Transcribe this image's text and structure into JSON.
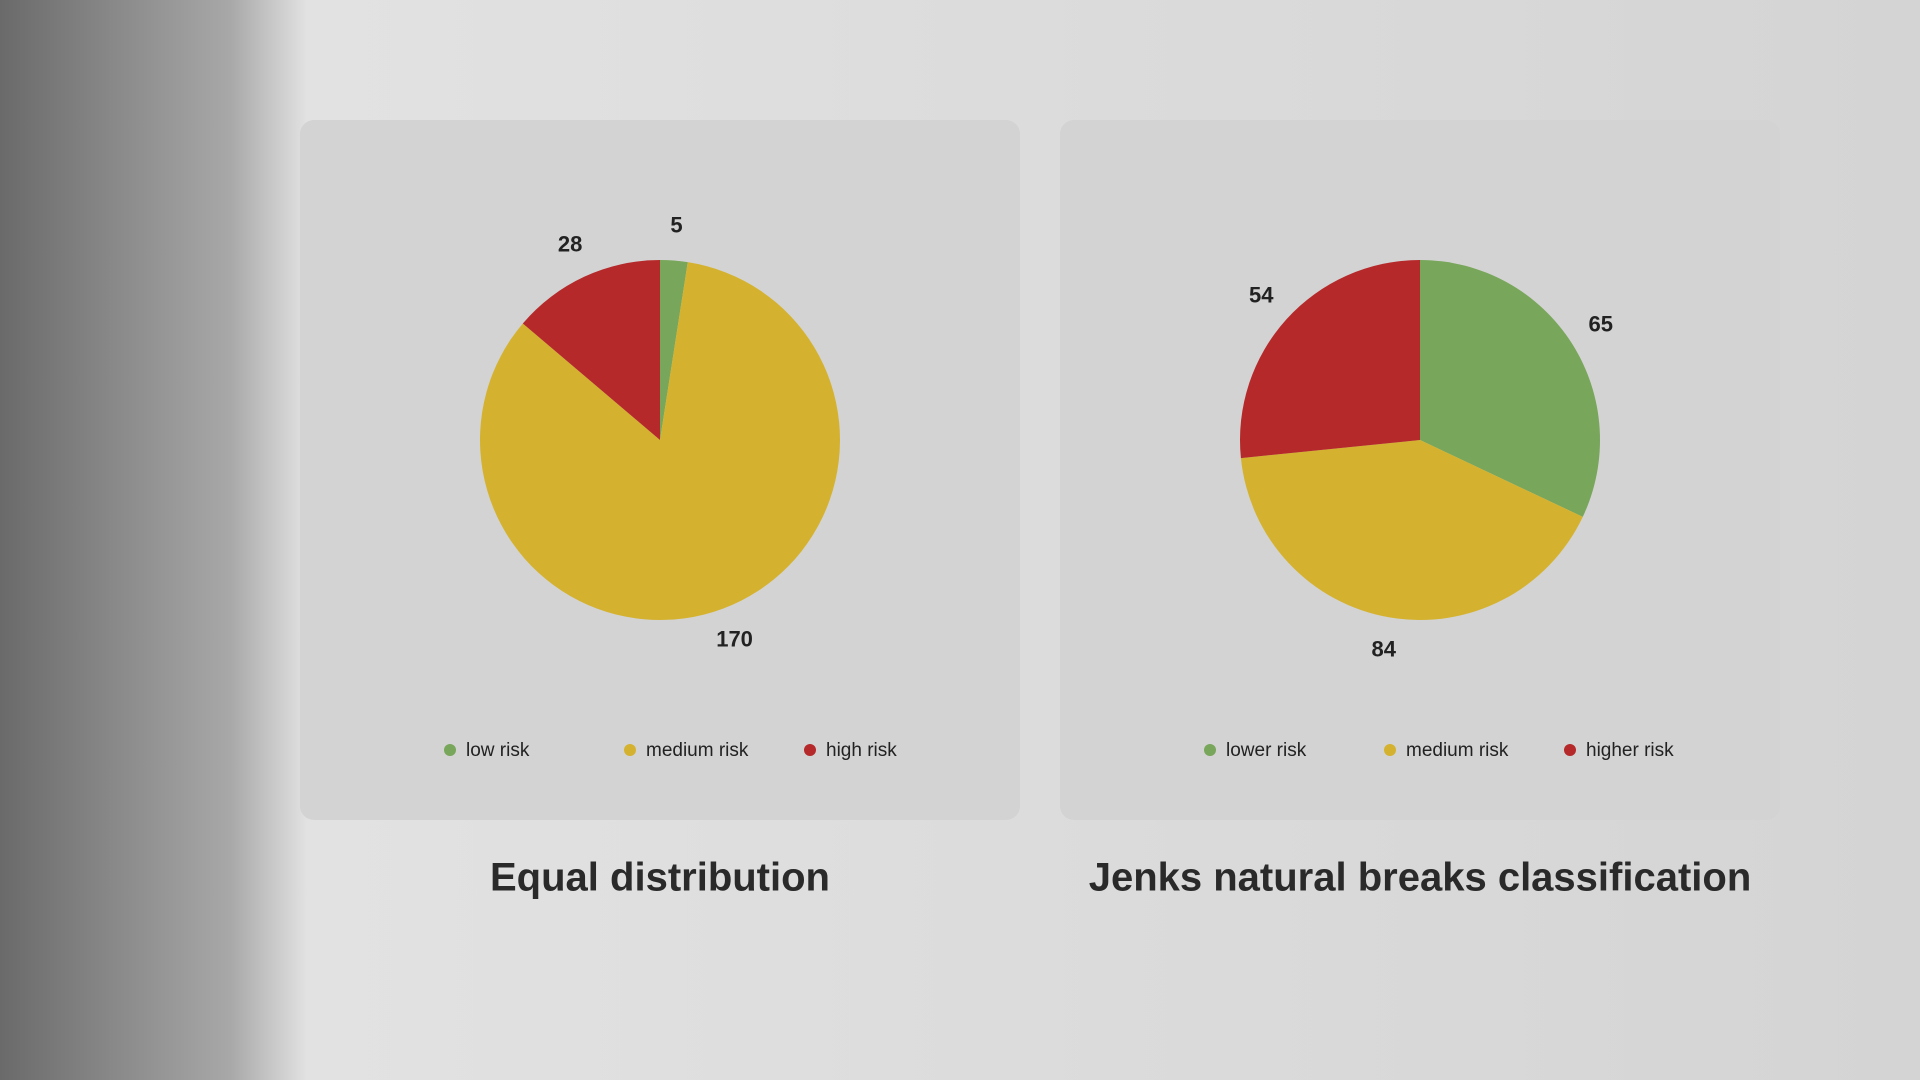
{
  "chart_data": [
    {
      "type": "pie",
      "title": "Equal distribution",
      "categories": [
        "low risk",
        "medium risk",
        "high risk"
      ],
      "values": [
        5,
        170,
        28
      ],
      "colors": [
        "#78a65a",
        "#d4b22f",
        "#b5292a"
      ]
    },
    {
      "type": "pie",
      "title": "Jenks natural breaks classification",
      "categories": [
        "lower risk",
        "medium risk",
        "higher risk"
      ],
      "values": [
        65,
        84,
        54
      ],
      "colors": [
        "#78a65a",
        "#d4b22f",
        "#b5292a"
      ]
    }
  ]
}
